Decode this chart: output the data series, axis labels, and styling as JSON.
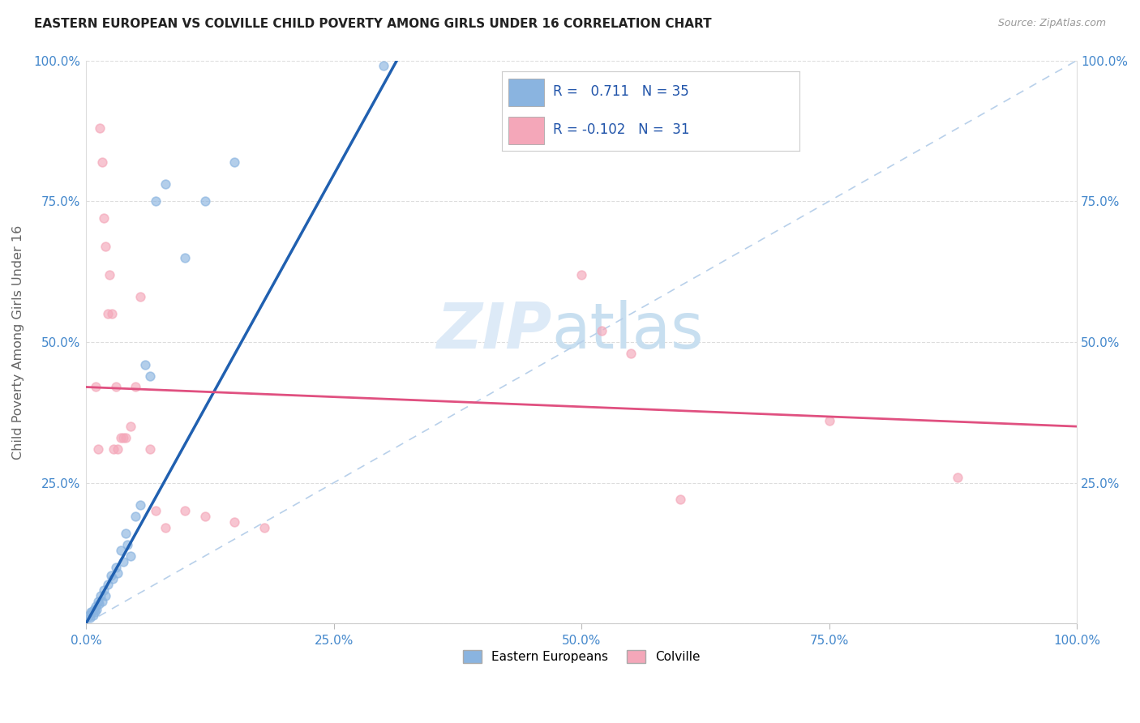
{
  "title": "EASTERN EUROPEAN VS COLVILLE CHILD POVERTY AMONG GIRLS UNDER 16 CORRELATION CHART",
  "source": "Source: ZipAtlas.com",
  "ylabel": "Child Poverty Among Girls Under 16",
  "xlim": [
    0.0,
    1.0
  ],
  "ylim": [
    0.0,
    1.0
  ],
  "xticks": [
    0.0,
    0.25,
    0.5,
    0.75,
    1.0
  ],
  "yticks": [
    0.0,
    0.25,
    0.5,
    0.75,
    1.0
  ],
  "xtick_labels": [
    "0.0%",
    "25.0%",
    "50.0%",
    "75.0%",
    "100.0%"
  ],
  "ytick_labels": [
    "",
    "25.0%",
    "50.0%",
    "75.0%",
    "100.0%"
  ],
  "blue_color": "#8ab4e0",
  "pink_color": "#f4a7b9",
  "blue_line_color": "#2060b0",
  "pink_line_color": "#e05080",
  "diagonal_color": "#b8d0ea",
  "r_blue": 0.711,
  "n_blue": 35,
  "r_pink": -0.102,
  "n_pink": 31,
  "blue_points": [
    [
      0.003,
      0.015
    ],
    [
      0.004,
      0.01
    ],
    [
      0.005,
      0.02
    ],
    [
      0.006,
      0.02
    ],
    [
      0.007,
      0.015
    ],
    [
      0.008,
      0.025
    ],
    [
      0.009,
      0.02
    ],
    [
      0.01,
      0.03
    ],
    [
      0.011,
      0.025
    ],
    [
      0.012,
      0.04
    ],
    [
      0.013,
      0.035
    ],
    [
      0.015,
      0.05
    ],
    [
      0.016,
      0.04
    ],
    [
      0.018,
      0.06
    ],
    [
      0.02,
      0.05
    ],
    [
      0.022,
      0.07
    ],
    [
      0.025,
      0.085
    ],
    [
      0.027,
      0.08
    ],
    [
      0.03,
      0.1
    ],
    [
      0.032,
      0.09
    ],
    [
      0.035,
      0.13
    ],
    [
      0.038,
      0.11
    ],
    [
      0.04,
      0.16
    ],
    [
      0.042,
      0.14
    ],
    [
      0.045,
      0.12
    ],
    [
      0.05,
      0.19
    ],
    [
      0.055,
      0.21
    ],
    [
      0.06,
      0.46
    ],
    [
      0.065,
      0.44
    ],
    [
      0.07,
      0.75
    ],
    [
      0.08,
      0.78
    ],
    [
      0.1,
      0.65
    ],
    [
      0.12,
      0.75
    ],
    [
      0.15,
      0.82
    ],
    [
      0.3,
      0.99
    ]
  ],
  "pink_points": [
    [
      0.01,
      0.42
    ],
    [
      0.012,
      0.31
    ],
    [
      0.014,
      0.88
    ],
    [
      0.016,
      0.82
    ],
    [
      0.018,
      0.72
    ],
    [
      0.02,
      0.67
    ],
    [
      0.022,
      0.55
    ],
    [
      0.024,
      0.62
    ],
    [
      0.026,
      0.55
    ],
    [
      0.028,
      0.31
    ],
    [
      0.03,
      0.42
    ],
    [
      0.032,
      0.31
    ],
    [
      0.035,
      0.33
    ],
    [
      0.038,
      0.33
    ],
    [
      0.04,
      0.33
    ],
    [
      0.045,
      0.35
    ],
    [
      0.05,
      0.42
    ],
    [
      0.055,
      0.58
    ],
    [
      0.065,
      0.31
    ],
    [
      0.07,
      0.2
    ],
    [
      0.08,
      0.17
    ],
    [
      0.1,
      0.2
    ],
    [
      0.12,
      0.19
    ],
    [
      0.15,
      0.18
    ],
    [
      0.18,
      0.17
    ],
    [
      0.5,
      0.62
    ],
    [
      0.52,
      0.52
    ],
    [
      0.55,
      0.48
    ],
    [
      0.6,
      0.22
    ],
    [
      0.75,
      0.36
    ],
    [
      0.88,
      0.26
    ]
  ],
  "blue_line_x": [
    0.0,
    0.32
  ],
  "blue_line_y": [
    0.0,
    1.02
  ],
  "pink_line_x": [
    0.0,
    1.0
  ],
  "pink_line_y": [
    0.42,
    0.35
  ],
  "diag_line_x": [
    0.0,
    1.0
  ],
  "diag_line_y": [
    0.0,
    1.0
  ]
}
